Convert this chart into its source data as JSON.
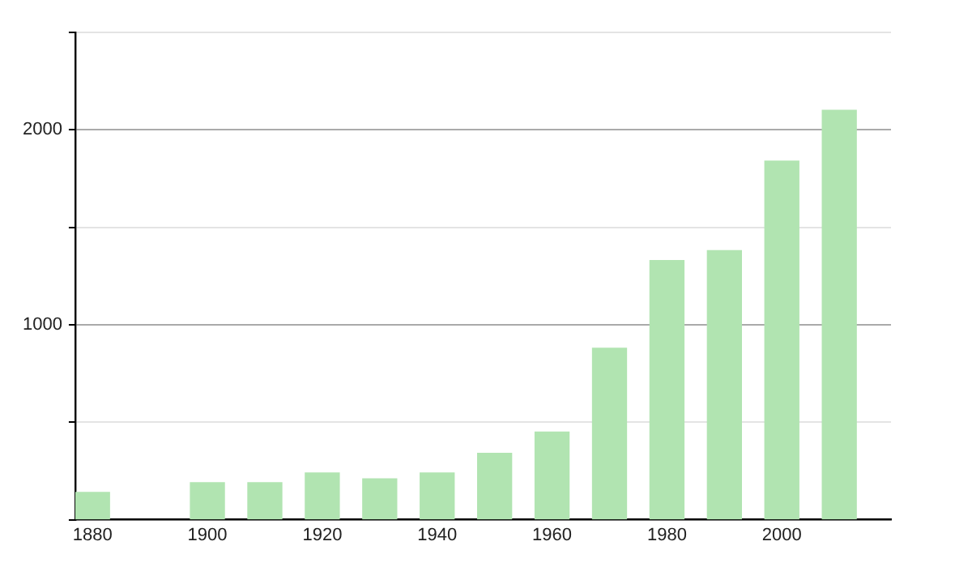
{
  "chart_data": {
    "type": "bar",
    "x": [
      1880,
      1900,
      1910,
      1920,
      1930,
      1940,
      1950,
      1960,
      1970,
      1980,
      1990,
      2000,
      2010
    ],
    "series": [
      {
        "color": "#b1e4b1",
        "values": [
          140,
          190,
          190,
          240,
          210,
          240,
          340,
          450,
          880,
          1330,
          1380,
          1840,
          2100
        ]
      }
    ],
    "xlim": [
      1877,
      2019
    ],
    "xticks": [
      1880,
      1900,
      1920,
      1940,
      1960,
      1980,
      2000
    ],
    "ylim": [
      0,
      2500
    ],
    "yticks": [
      {
        "value": 0,
        "label": null
      },
      {
        "value": 500,
        "label": null
      },
      1000,
      {
        "value": 1500,
        "label": null
      },
      2000,
      {
        "value": 2500,
        "label": null
      }
    ],
    "grid": "y",
    "legend": false
  }
}
